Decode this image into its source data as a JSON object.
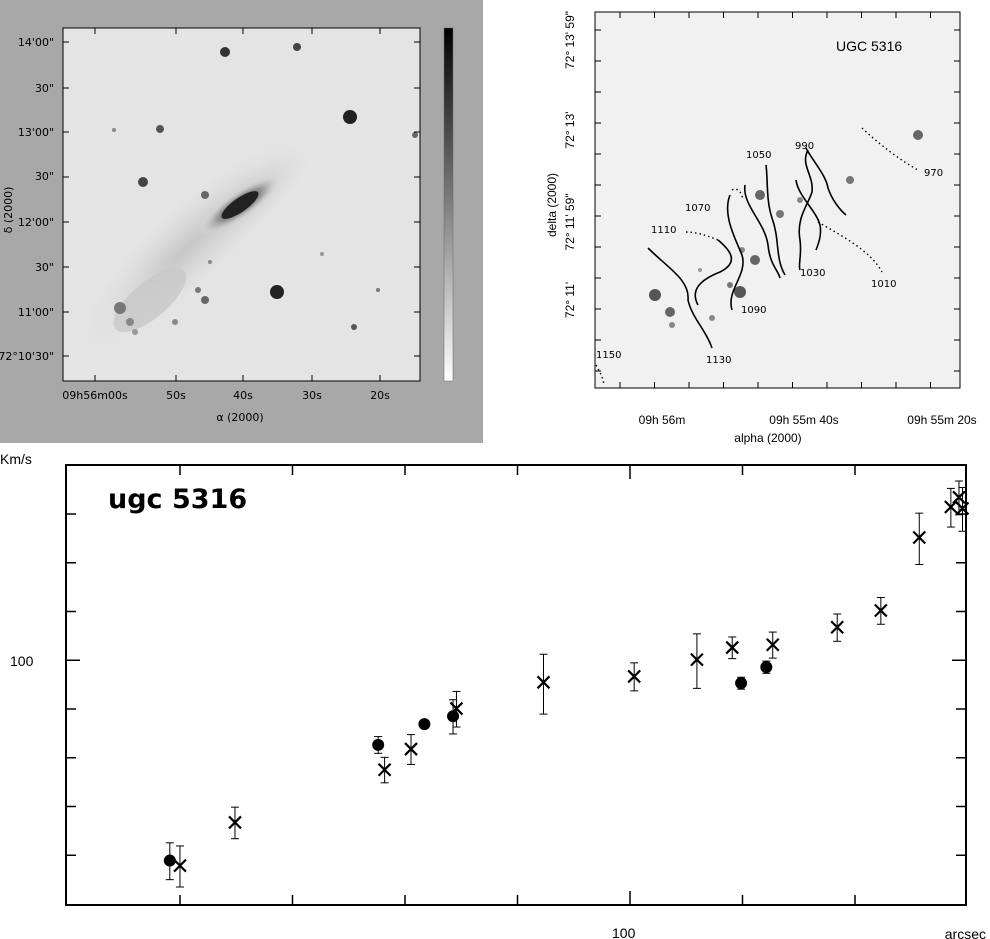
{
  "left_panel": {
    "ra_ticks": [
      "09h56m00s",
      "50s",
      "40s",
      "30s",
      "20s"
    ],
    "dec_ticks": [
      "14'00\"",
      "30\"",
      "13'00\"",
      "30\"",
      "12'00\"",
      "30\"",
      "11'00\"",
      "72°10'30\""
    ],
    "x_axis_label": "α (2000)",
    "y_axis_label": "δ (2000)"
  },
  "right_panel": {
    "title": "UGC 5316",
    "dec_ticks": [
      "72° 13' 59\"",
      "72° 13'",
      "72° 11' 59\"",
      "72° 11'"
    ],
    "ra_ticks": [
      "09h 56m",
      "09h 55m 40s",
      "09h 55m 20s"
    ],
    "x_axis_label": "alpha (2000)",
    "y_axis_label": "delta (2000)",
    "contour_labels": [
      "990",
      "1050",
      "970",
      "1070",
      "1110",
      "1030",
      "1010",
      "1090",
      "1130",
      "1150"
    ]
  },
  "chart_data": {
    "type": "scatter",
    "title": "ugc 5316",
    "xlabel": "arcsec",
    "ylabel": "Km/s",
    "x_scale": "log",
    "y_scale": "log",
    "x_tick_labels": [
      "100"
    ],
    "y_tick_labels": [
      "100"
    ],
    "xlim": [
      11.3,
      185
    ],
    "ylim": [
      37,
      220
    ],
    "series": [
      {
        "marker": "cross",
        "points": [
          {
            "x": 16.1,
            "y": 43.4,
            "err": 3.6
          },
          {
            "x": 19.1,
            "y": 51.7,
            "err": 3.3
          },
          {
            "x": 30.4,
            "y": 64.0,
            "err": 3.3
          },
          {
            "x": 33.0,
            "y": 69.6,
            "err": 4.2
          },
          {
            "x": 38.0,
            "y": 82.0,
            "err": 5.9
          },
          {
            "x": 49.8,
            "y": 91.2,
            "err": 11.0
          },
          {
            "x": 66.0,
            "y": 93.4,
            "err": 5.3
          },
          {
            "x": 80.2,
            "y": 100.0,
            "err": 11.0
          },
          {
            "x": 89.5,
            "y": 105.0,
            "err": 4.6
          },
          {
            "x": 101.5,
            "y": 106.2,
            "err": 5.6
          },
          {
            "x": 124.0,
            "y": 114.0,
            "err": 6.3
          },
          {
            "x": 142.0,
            "y": 122.0,
            "err": 6.6
          },
          {
            "x": 160.0,
            "y": 164.0,
            "err": 17.0
          },
          {
            "x": 176.5,
            "y": 185.6,
            "err": 14.5
          },
          {
            "x": 181.0,
            "y": 193.0,
            "err": 13.2
          },
          {
            "x": 183.0,
            "y": 184.5,
            "err": 16.3
          }
        ]
      },
      {
        "marker": "dot",
        "points": [
          {
            "x": 15.6,
            "y": 44.3,
            "err": 3.3
          },
          {
            "x": 29.8,
            "y": 70.8,
            "err": 2.4
          },
          {
            "x": 34.4,
            "y": 77.0,
            "err": 0
          },
          {
            "x": 37.6,
            "y": 79.5,
            "err": 5.5
          },
          {
            "x": 92.0,
            "y": 90.9,
            "err": 2.2
          },
          {
            "x": 99.5,
            "y": 97.0,
            "err": 2.4
          }
        ]
      }
    ]
  }
}
